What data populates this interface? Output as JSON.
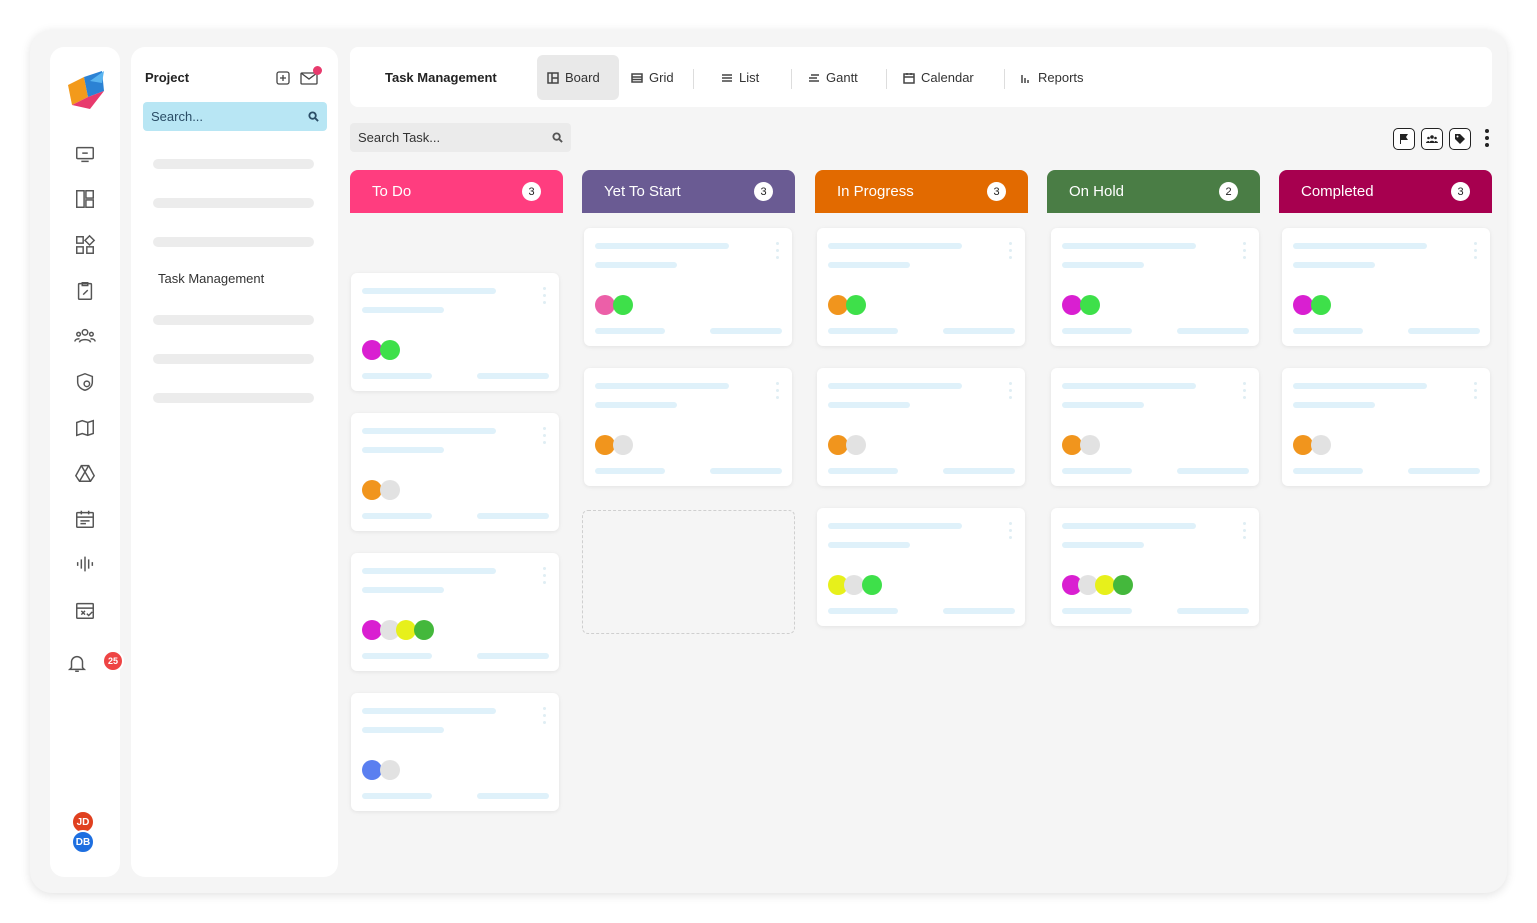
{
  "project_panel": {
    "title": "Project",
    "search_placeholder": "Search...",
    "item": "Task Management"
  },
  "topbar": {
    "title": "Task Management",
    "tabs": [
      {
        "label": "Board",
        "icon": "board-icon",
        "active": true
      },
      {
        "label": "Grid",
        "icon": "grid-icon"
      },
      {
        "label": "List",
        "icon": "list-icon"
      },
      {
        "label": "Gantt",
        "icon": "gantt-icon"
      },
      {
        "label": "Calendar",
        "icon": "calendar-icon"
      },
      {
        "label": "Reports",
        "icon": "reports-icon"
      }
    ]
  },
  "task_search": {
    "placeholder": "Search Task..."
  },
  "notifications": {
    "count": "25"
  },
  "users": [
    {
      "initials": "JD",
      "color": "#e0401f"
    },
    {
      "initials": "DB",
      "color": "#1e6fe0"
    }
  ],
  "columns": [
    {
      "label": "To Do",
      "count": "3",
      "color": "#ff3d7f"
    },
    {
      "label": "Yet To Start",
      "count": "3",
      "color": "#6a5b93"
    },
    {
      "label": "In Progress",
      "count": "3",
      "color": "#e26a00"
    },
    {
      "label": "On Hold",
      "count": "2",
      "color": "#4a7d45"
    },
    {
      "label": "Completed",
      "count": "3",
      "color": "#a7004f"
    }
  ],
  "colors": {
    "magenta": "#d91fd1",
    "green": "#3ee04a",
    "orange": "#f1951d",
    "gray": "#e2e2e2",
    "yellow": "#e7f01b",
    "darkgreen": "#44b83c",
    "blue": "#5a7ff0",
    "pink": "#ec5fa8"
  }
}
